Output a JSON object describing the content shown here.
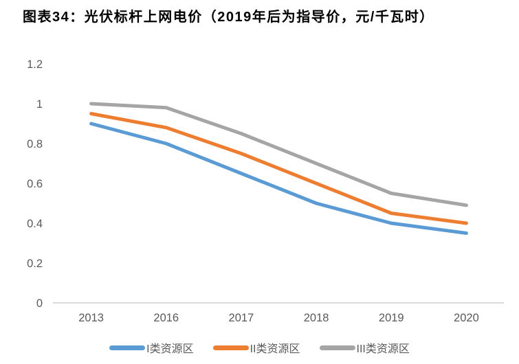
{
  "title": "图表34：光伏标杆上网电价（2019年后为指导价，元/千瓦时）",
  "colors": {
    "title_text": "#000000",
    "tick_text": "#595959",
    "axis_line": "#d9d9d9",
    "background": "#ffffff"
  },
  "chart_data": {
    "type": "line",
    "title": "图表34：光伏标杆上网电价（2019年后为指导价，元/千瓦时）",
    "categories": [
      "2013",
      "2016",
      "2017",
      "2018",
      "2019",
      "2020"
    ],
    "series": [
      {
        "name": "I类资源区",
        "color": "#5b9bd5",
        "values": [
          0.9,
          0.8,
          0.65,
          0.5,
          0.4,
          0.35
        ]
      },
      {
        "name": "II类资源区",
        "color": "#ed7d31",
        "values": [
          0.95,
          0.88,
          0.75,
          0.6,
          0.45,
          0.4
        ]
      },
      {
        "name": "III类资源区",
        "color": "#a5a5a5",
        "values": [
          1.0,
          0.98,
          0.85,
          0.7,
          0.55,
          0.49
        ]
      }
    ],
    "xlabel": "",
    "ylabel": "",
    "ylim": [
      0,
      1.2
    ],
    "ytick_step": 0.2,
    "ytick_labels": [
      "0",
      "0.2",
      "0.4",
      "0.6",
      "0.8",
      "1",
      "1.2"
    ],
    "grid": false,
    "legend_position": "bottom"
  }
}
